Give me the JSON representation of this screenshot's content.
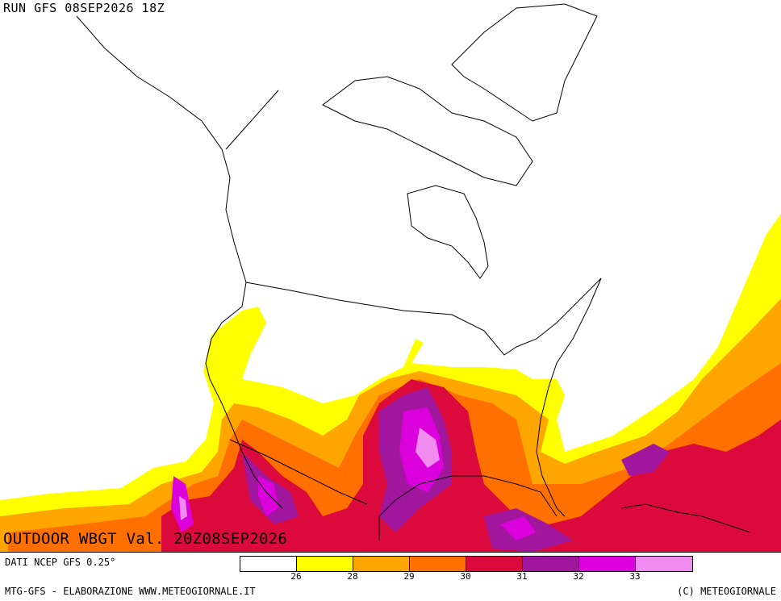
{
  "header": {
    "run_label": "RUN GFS 08SEP2026 18Z"
  },
  "map": {
    "valid_label": "OUTDOOR WBGT Val. 20Z08SEP2026",
    "colors": {
      "c26": "#ffff00",
      "c28": "#ffa500",
      "c29": "#ff7000",
      "c30": "#dc0a3c",
      "c31": "#a0169c",
      "c32": "#dc00dc",
      "c33": "#f08cf0",
      "coast": "#000000",
      "background": "#ffffff"
    }
  },
  "footer": {
    "source": "DATI NCEP GFS 0.25°",
    "credit_left": "MTG-GFS - ELABORAZIONE WWW.METEOGIORNALE.IT",
    "credit_right": "(C) METEOGIORNALE"
  },
  "legend": {
    "colors": [
      "#ffffff",
      "#ffff00",
      "#ffa500",
      "#ff7000",
      "#dc0a3c",
      "#a0169c",
      "#dc00dc",
      "#f08cf0"
    ],
    "ticks": [
      "26",
      "28",
      "29",
      "30",
      "31",
      "32",
      "33"
    ]
  }
}
